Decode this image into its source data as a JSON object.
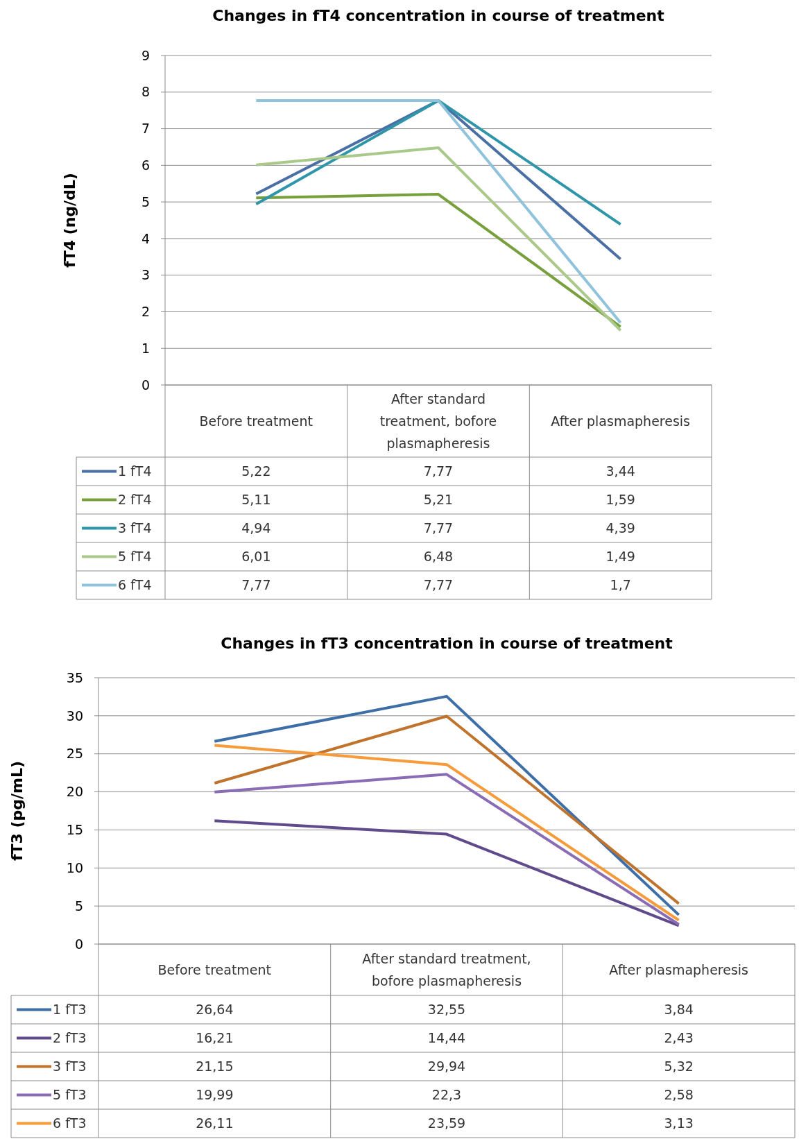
{
  "chart_data": [
    {
      "type": "line",
      "title": "Changes in fT4 concentration in course of treatment",
      "ylabel": "fT4 (ng/dL)",
      "categories": [
        "Before treatment",
        "After standard treatment, bofore plasmapheresis",
        "After plasmapheresis"
      ],
      "ylim": [
        0,
        9
      ],
      "yticks": [
        0,
        1,
        2,
        3,
        4,
        5,
        6,
        7,
        8,
        9
      ],
      "grid": "y",
      "legend": "bottom",
      "marker": "none",
      "series": [
        {
          "name": "1 fT4",
          "color": "#4a6fa5",
          "values": [
            5.22,
            7.77,
            3.44
          ],
          "value_labels": [
            "5,22",
            "7,77",
            "3,44"
          ]
        },
        {
          "name": "2 fT4",
          "color": "#77a03c",
          "values": [
            5.11,
            5.21,
            1.59
          ],
          "value_labels": [
            "5,11",
            "5,21",
            "1,59"
          ]
        },
        {
          "name": "3 fT4",
          "color": "#2e96a8",
          "values": [
            4.94,
            7.77,
            4.39
          ],
          "value_labels": [
            "4,94",
            "7,77",
            "4,39"
          ]
        },
        {
          "name": "5 fT4",
          "color": "#a9c98a",
          "values": [
            6.01,
            6.48,
            1.49
          ],
          "value_labels": [
            "6,01",
            "6,48",
            "1,49"
          ]
        },
        {
          "name": "6 fT4",
          "color": "#8fc3dc",
          "values": [
            7.77,
            7.77,
            1.7
          ],
          "value_labels": [
            "7,77",
            "7,77",
            "1,7"
          ]
        }
      ]
    },
    {
      "type": "line",
      "title": "Changes in fT3 concentration in course of treatment",
      "ylabel": "fT3 (pg/mL)",
      "categories": [
        "Before treatment",
        "After standard treatment, bofore plasmapheresis",
        "After plasmapheresis"
      ],
      "ylim": [
        0,
        35
      ],
      "yticks": [
        0,
        5,
        10,
        15,
        20,
        25,
        30,
        35
      ],
      "grid": "y",
      "legend": "bottom",
      "marker": "none",
      "series": [
        {
          "name": "1 fT3",
          "color": "#3d6ea8",
          "values": [
            26.64,
            32.55,
            3.84
          ],
          "value_labels": [
            "26,64",
            "32,55",
            "3,84"
          ]
        },
        {
          "name": "2 fT3",
          "color": "#5f4a8b",
          "values": [
            16.21,
            14.44,
            2.43
          ],
          "value_labels": [
            "16,21",
            "14,44",
            "2,43"
          ]
        },
        {
          "name": "3 fT3",
          "color": "#c0732c",
          "values": [
            21.15,
            29.94,
            5.32
          ],
          "value_labels": [
            "21,15",
            "29,94",
            "5,32"
          ]
        },
        {
          "name": "5 fT3",
          "color": "#8a6bb5",
          "values": [
            19.99,
            22.3,
            2.58
          ],
          "value_labels": [
            "19,99",
            "22,3",
            "2,58"
          ]
        },
        {
          "name": "6 fT3",
          "color": "#f79a3a",
          "values": [
            26.11,
            23.59,
            3.13
          ],
          "value_labels": [
            "26,11",
            "23,59",
            "3,13"
          ]
        }
      ]
    }
  ]
}
